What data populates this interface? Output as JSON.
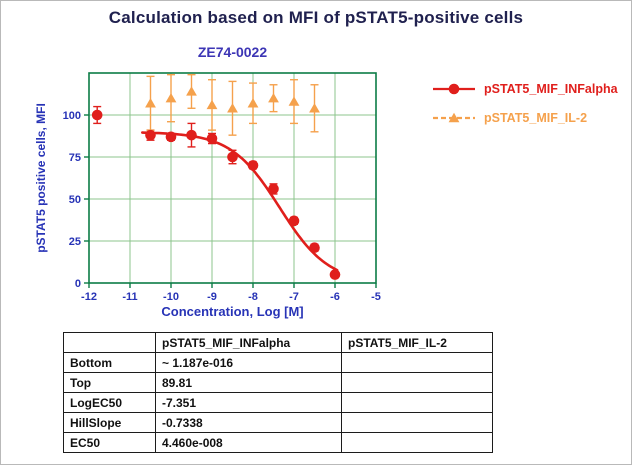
{
  "page": {
    "title": "Calculation based on MFI of pSTAT5-positive cells"
  },
  "chart_data": {
    "type": "scatter",
    "title": "ZE74-0022",
    "xlabel": "Concentration, Log [M]",
    "ylabel": "pSTAT5 positive cells, MFI",
    "xlim": [
      -12,
      -5
    ],
    "ylim": [
      0,
      125
    ],
    "x_ticks": [
      -12,
      -11,
      -10,
      -9,
      -8,
      -7,
      -6,
      -5
    ],
    "y_ticks": [
      0,
      25,
      50,
      75,
      100
    ],
    "grid": true,
    "legend_position": "right",
    "colors": {
      "frame": "#0c7c46",
      "grid": "#8cc48c",
      "tick_labels": "#2733b6",
      "axis_labels": "#2733b6",
      "chart_title": "#3c35b5",
      "page_title": "#20214f"
    },
    "series": [
      {
        "name": "pSTAT5_MIF_INFalpha",
        "marker": "circle",
        "color": "#e01f1c",
        "x": [
          -11.8,
          -10.5,
          -10,
          -9.5,
          -9,
          -8.5,
          -8,
          -7.5,
          -7,
          -6.5,
          -6
        ],
        "y": [
          100,
          88,
          87,
          88,
          86,
          75,
          70,
          56,
          37,
          21,
          5
        ],
        "err": [
          5,
          3,
          2,
          7,
          3,
          4,
          2,
          3,
          2,
          2,
          1
        ],
        "legend_dash": ""
      },
      {
        "name": "pSTAT5_MIF_IL-2",
        "marker": "triangle",
        "color": "#f5a14c",
        "x": [
          -10.5,
          -10,
          -9.5,
          -9,
          -8.5,
          -8,
          -7.5,
          -7,
          -6.5
        ],
        "y": [
          107,
          110,
          114,
          106,
          104,
          107,
          110,
          108,
          104
        ],
        "err": [
          16,
          14,
          10,
          15,
          16,
          12,
          8,
          13,
          14
        ],
        "legend_dash": "5 3"
      }
    ],
    "fit": {
      "series": "pSTAT5_MIF_INFalpha",
      "bottom": 0,
      "top": 89.81,
      "logec50": -7.351,
      "hillslope": -0.7338,
      "x_start": -10.7,
      "x_end": -5.95
    }
  },
  "table": {
    "columns": [
      "",
      "pSTAT5_MIF_INFalpha",
      "pSTAT5_MIF_IL-2"
    ],
    "rows": [
      {
        "label": "Bottom",
        "v1": "~ 1.187e-016",
        "v2": ""
      },
      {
        "label": "Top",
        "v1": "89.81",
        "v2": ""
      },
      {
        "label": "LogEC50",
        "v1": "-7.351",
        "v2": ""
      },
      {
        "label": "HillSlope",
        "v1": "-0.7338",
        "v2": ""
      },
      {
        "label": "EC50",
        "v1": "4.460e-008",
        "v2": ""
      }
    ]
  }
}
